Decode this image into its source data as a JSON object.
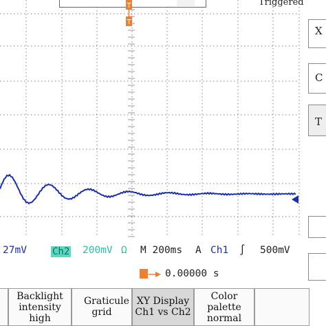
{
  "top": {
    "status": "Triggered",
    "trigger_marker": "T"
  },
  "side": {
    "letters": [
      "X",
      "C",
      "T"
    ]
  },
  "readout": {
    "ch1_scale": "27mV",
    "ch2_label": "Ch2",
    "ch2_scale": "200mV",
    "ch2_symbol": "Ω",
    "timebase": "M 200ms",
    "trigger_mode": "A",
    "trigger_source": "Ch1",
    "trigger_slope": "∫",
    "trigger_level": "500mV",
    "position_value": "0.00000 s"
  },
  "menu": {
    "buttons": [
      {
        "label": "Backlight intensity high"
      },
      {
        "label": "Graticule grid"
      },
      {
        "label": "XY Display Ch1 vs Ch2"
      },
      {
        "label": "Color palette normal"
      }
    ]
  },
  "colors": {
    "trace": "#1a2db0",
    "grid": "#9a9a9a",
    "ch2": "#2bbfa3",
    "trigger": "#f08030"
  }
}
